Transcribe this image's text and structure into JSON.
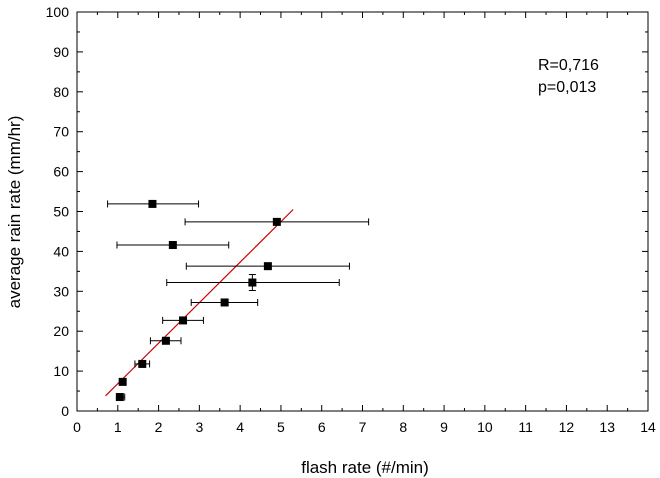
{
  "chart_data": {
    "type": "scatter",
    "title": "",
    "xlabel": "flash rate (#/min)",
    "ylabel": "average rain rate (mm/hr)",
    "xlim": [
      0,
      14
    ],
    "ylim": [
      0,
      100
    ],
    "x_ticks": [
      0,
      1,
      2,
      3,
      4,
      5,
      6,
      7,
      8,
      9,
      10,
      11,
      12,
      13,
      14
    ],
    "y_ticks": [
      0,
      10,
      20,
      30,
      40,
      50,
      60,
      70,
      80,
      90,
      100
    ],
    "grid": false,
    "legend": "none",
    "annotations": [
      "R=0,716",
      "p=0,013"
    ],
    "point_color": "#000000",
    "fit_color": "#cc0000",
    "points": [
      {
        "x": 1.05,
        "y": 3.5,
        "xerr_low": 0.98,
        "xerr_high": 1.17,
        "yerr": 0
      },
      {
        "x": 1.12,
        "y": 7.3,
        "xerr_low": 1.07,
        "xerr_high": 1.2,
        "yerr": 0
      },
      {
        "x": 1.6,
        "y": 11.8,
        "xerr_low": 1.42,
        "xerr_high": 1.78,
        "yerr": 0
      },
      {
        "x": 2.18,
        "y": 17.6,
        "xerr_low": 1.8,
        "xerr_high": 2.55,
        "yerr": 0
      },
      {
        "x": 2.6,
        "y": 22.7,
        "xerr_low": 2.1,
        "xerr_high": 3.1,
        "yerr": 0
      },
      {
        "x": 3.62,
        "y": 27.2,
        "xerr_low": 2.8,
        "xerr_high": 4.43,
        "yerr": 0
      },
      {
        "x": 4.3,
        "y": 32.2,
        "xerr_low": 2.2,
        "xerr_high": 6.43,
        "yerr": 2.0
      },
      {
        "x": 4.68,
        "y": 36.3,
        "xerr_low": 2.68,
        "xerr_high": 6.68,
        "yerr": 0
      },
      {
        "x": 2.35,
        "y": 41.6,
        "xerr_low": 0.98,
        "xerr_high": 3.72,
        "yerr": 0
      },
      {
        "x": 4.9,
        "y": 47.4,
        "xerr_low": 2.65,
        "xerr_high": 7.15,
        "yerr": 0
      },
      {
        "x": 1.85,
        "y": 51.9,
        "xerr_low": 0.75,
        "xerr_high": 2.98,
        "yerr": 0
      }
    ],
    "fit_line": {
      "x": [
        0.7,
        5.3
      ],
      "y": [
        3.8,
        50.5
      ]
    }
  }
}
